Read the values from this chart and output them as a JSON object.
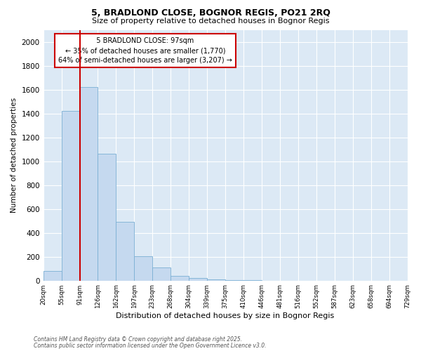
{
  "title_line1": "5, BRADLOND CLOSE, BOGNOR REGIS, PO21 2RQ",
  "title_line2": "Size of property relative to detached houses in Bognor Regis",
  "xlabel": "Distribution of detached houses by size in Bognor Regis",
  "ylabel": "Number of detached properties",
  "bar_values": [
    80,
    1420,
    1620,
    1060,
    490,
    205,
    110,
    40,
    20,
    10,
    5,
    2,
    1,
    1,
    0,
    0,
    0,
    0,
    0,
    0
  ],
  "categories": [
    "20sqm",
    "55sqm",
    "91sqm",
    "126sqm",
    "162sqm",
    "197sqm",
    "233sqm",
    "268sqm",
    "304sqm",
    "339sqm",
    "375sqm",
    "410sqm",
    "446sqm",
    "481sqm",
    "516sqm",
    "552sqm",
    "587sqm",
    "623sqm",
    "658sqm",
    "694sqm",
    "729sqm"
  ],
  "bar_color": "#c5d9ef",
  "bar_edge_color": "#7bafd4",
  "bg_color": "#dce9f5",
  "grid_color": "#ffffff",
  "vline_color": "#cc0000",
  "annotation_title": "5 BRADLOND CLOSE: 97sqm",
  "annotation_line1": "← 35% of detached houses are smaller (1,770)",
  "annotation_line2": "64% of semi-detached houses are larger (3,207) →",
  "annotation_box_color": "#cc0000",
  "ylim": [
    0,
    2100
  ],
  "yticks": [
    0,
    200,
    400,
    600,
    800,
    1000,
    1200,
    1400,
    1600,
    1800,
    2000
  ],
  "footnote1": "Contains HM Land Registry data © Crown copyright and database right 2025.",
  "footnote2": "Contains public sector information licensed under the Open Government Licence v3.0."
}
